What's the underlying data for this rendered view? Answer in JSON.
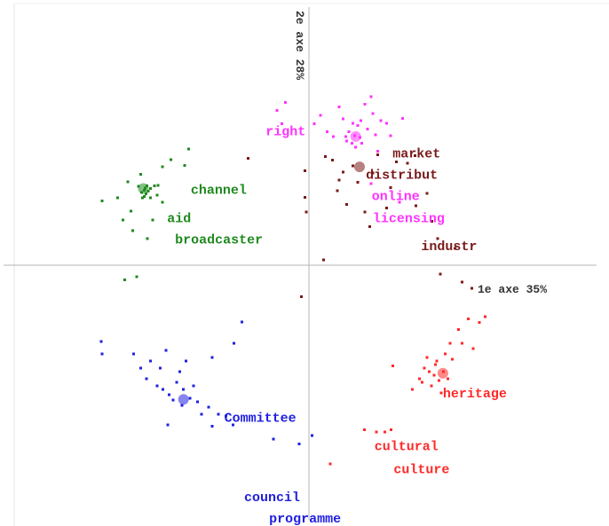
{
  "chart_data": {
    "type": "scatter",
    "title": "",
    "xlabel": "1e axe 35%",
    "ylabel": "2e axe 28%",
    "xlim": [
      -1,
      1
    ],
    "ylim": [
      -1,
      1
    ],
    "grid": false,
    "colors": {
      "green": "#1f8a1f",
      "magenta": "#ff33ff",
      "maroon": "#7a1a1a",
      "red": "#ff2a2a",
      "blue": "#2020e0"
    },
    "clusters": [
      {
        "color": "green",
        "centroid": [
          -0.524,
          0.281
        ],
        "points": [
          [
            -0.655,
            0.236
          ],
          [
            -0.605,
            0.247
          ],
          [
            -0.589,
            0.165
          ],
          [
            -0.573,
            0.305
          ],
          [
            -0.563,
            0.198
          ],
          [
            -0.539,
            0.289
          ],
          [
            -0.533,
            0.332
          ],
          [
            -0.53,
            0.267
          ],
          [
            -0.527,
            0.246
          ],
          [
            -0.521,
            0.275
          ],
          [
            -0.521,
            0.251
          ],
          [
            -0.518,
            0.283
          ],
          [
            -0.515,
            0.262
          ],
          [
            -0.512,
            0.29
          ],
          [
            -0.508,
            0.271
          ],
          [
            -0.502,
            0.246
          ],
          [
            -0.502,
            0.281
          ],
          [
            -0.489,
            0.291
          ],
          [
            -0.48,
            0.257
          ],
          [
            -0.477,
            0.292
          ],
          [
            -0.464,
            0.231
          ],
          [
            -0.464,
            0.361
          ],
          [
            -0.437,
            0.386
          ],
          [
            -0.393,
            0.366
          ],
          [
            -0.38,
            0.426
          ],
          [
            -0.558,
            0.127
          ],
          [
            -0.511,
            0.098
          ],
          [
            -0.495,
            0.166
          ],
          [
            -0.583,
            -0.053
          ],
          [
            -0.545,
            -0.042
          ]
        ]
      },
      {
        "color": "magenta",
        "centroid": [
          0.148,
          0.471
        ],
        "points": [
          [
            -0.101,
            0.567
          ],
          [
            -0.086,
            0.518
          ],
          [
            -0.074,
            0.596
          ],
          [
            0.017,
            0.518
          ],
          [
            0.036,
            0.549
          ],
          [
            0.058,
            0.488
          ],
          [
            0.077,
            0.47
          ],
          [
            0.096,
            0.58
          ],
          [
            0.108,
            0.535
          ],
          [
            0.117,
            0.47
          ],
          [
            0.12,
            0.454
          ],
          [
            0.126,
            0.488
          ],
          [
            0.136,
            0.447
          ],
          [
            0.139,
            0.52
          ],
          [
            0.145,
            0.474
          ],
          [
            0.148,
            0.432
          ],
          [
            0.155,
            0.512
          ],
          [
            0.161,
            0.467
          ],
          [
            0.164,
            0.529
          ],
          [
            0.167,
            0.447
          ],
          [
            0.177,
            0.59
          ],
          [
            0.186,
            0.499
          ],
          [
            0.196,
            0.617
          ],
          [
            0.202,
            0.555
          ],
          [
            0.211,
            0.477
          ],
          [
            0.218,
            0.417
          ],
          [
            0.227,
            0.53
          ],
          [
            0.246,
            0.52
          ],
          [
            0.258,
            0.474
          ],
          [
            0.296,
            0.537
          ],
          [
            0.196,
            0.298
          ],
          [
            0.287,
            0.23
          ]
        ]
      },
      {
        "color": "maroon",
        "centroid": [
          0.16,
          0.36
        ],
        "points": [
          [
            -0.193,
            0.391
          ],
          [
            -0.012,
            0.346
          ],
          [
            -0.012,
            0.249
          ],
          [
            -0.009,
            0.195
          ],
          [
            0.052,
            0.397
          ],
          [
            0.074,
            0.384
          ],
          [
            0.09,
            0.273
          ],
          [
            0.096,
            0.311
          ],
          [
            0.108,
            0.341
          ],
          [
            0.12,
            0.222
          ],
          [
            0.139,
            0.364
          ],
          [
            0.155,
            0.303
          ],
          [
            0.177,
            0.195
          ],
          [
            0.193,
            0.141
          ],
          [
            0.202,
            0.337
          ],
          [
            0.218,
            0.404
          ],
          [
            0.246,
            0.21
          ],
          [
            0.258,
            0.284
          ],
          [
            0.277,
            0.379
          ],
          [
            0.312,
            0.374
          ],
          [
            0.336,
            0.401
          ],
          [
            0.339,
            0.217
          ],
          [
            0.374,
            0.263
          ],
          [
            0.389,
            0.161
          ],
          [
            0.407,
            0.097
          ],
          [
            0.416,
            -0.032
          ],
          [
            0.462,
            0.061
          ],
          [
            0.484,
            -0.062
          ],
          [
            0.515,
            -0.085
          ],
          [
            0.047,
            0.019
          ],
          [
            -0.024,
            -0.116
          ]
        ]
      },
      {
        "color": "red",
        "centroid": [
          0.424,
          -0.395
        ],
        "points": [
          [
            0.265,
            -0.368
          ],
          [
            0.327,
            -0.455
          ],
          [
            0.35,
            -0.416
          ],
          [
            0.358,
            -0.429
          ],
          [
            0.365,
            -0.377
          ],
          [
            0.373,
            -0.338
          ],
          [
            0.38,
            -0.39
          ],
          [
            0.388,
            -0.442
          ],
          [
            0.396,
            -0.403
          ],
          [
            0.4,
            -0.364
          ],
          [
            0.404,
            -0.351
          ],
          [
            0.411,
            -0.422
          ],
          [
            0.419,
            -0.468
          ],
          [
            0.426,
            -0.39
          ],
          [
            0.431,
            -0.325
          ],
          [
            0.439,
            -0.416
          ],
          [
            0.446,
            -0.286
          ],
          [
            0.454,
            -0.344
          ],
          [
            0.473,
            -0.235
          ],
          [
            0.484,
            -0.286
          ],
          [
            0.504,
            -0.196
          ],
          [
            0.519,
            -0.306
          ],
          [
            0.539,
            -0.209
          ],
          [
            0.557,
            -0.189
          ],
          [
            0.175,
            -0.603
          ],
          [
            0.213,
            -0.61
          ],
          [
            0.24,
            -0.61
          ],
          [
            0.26,
            -0.603
          ],
          [
            0.067,
            -0.727
          ]
        ]
      },
      {
        "color": "blue",
        "centroid": [
          -0.397,
          -0.491
        ],
        "points": [
          [
            -0.658,
            -0.28
          ],
          [
            -0.655,
            -0.325
          ],
          [
            -0.555,
            -0.325
          ],
          [
            -0.533,
            -0.377
          ],
          [
            -0.514,
            -0.416
          ],
          [
            -0.502,
            -0.351
          ],
          [
            -0.481,
            -0.442
          ],
          [
            -0.471,
            -0.377
          ],
          [
            -0.462,
            -0.455
          ],
          [
            -0.452,
            -0.312
          ],
          [
            -0.443,
            -0.474
          ],
          [
            -0.43,
            -0.493
          ],
          [
            -0.418,
            -0.429
          ],
          [
            -0.409,
            -0.39
          ],
          [
            -0.402,
            -0.513
          ],
          [
            -0.397,
            -0.455
          ],
          [
            -0.389,
            -0.351
          ],
          [
            -0.377,
            -0.487
          ],
          [
            -0.365,
            -0.442
          ],
          [
            -0.352,
            -0.5
          ],
          [
            -0.34,
            -0.545
          ],
          [
            -0.318,
            -0.519
          ],
          [
            -0.306,
            -0.338
          ],
          [
            -0.287,
            -0.545
          ],
          [
            -0.262,
            -0.552
          ],
          [
            -0.24,
            -0.584
          ],
          [
            -0.306,
            -0.59
          ],
          [
            -0.447,
            -0.584
          ],
          [
            -0.237,
            -0.286
          ],
          [
            -0.212,
            -0.208
          ],
          [
            -0.112,
            -0.636
          ],
          [
            -0.031,
            -0.655
          ],
          [
            0.01,
            -0.623
          ]
        ]
      }
    ],
    "words": [
      {
        "text": "right",
        "color": "magenta",
        "x": -0.137,
        "y": 0.475
      },
      {
        "text": "market",
        "color": "maroon",
        "x": 0.265,
        "y": 0.394
      },
      {
        "text": "distribut",
        "color": "maroon",
        "x": 0.18,
        "y": 0.316
      },
      {
        "text": "online",
        "color": "magenta",
        "x": 0.199,
        "y": 0.238
      },
      {
        "text": "licensing",
        "color": "magenta",
        "x": 0.202,
        "y": 0.158
      },
      {
        "text": "industr",
        "color": "maroon",
        "x": 0.355,
        "y": 0.055
      },
      {
        "text": "channel",
        "color": "green",
        "x": -0.374,
        "y": 0.262
      },
      {
        "text": "aid",
        "color": "green",
        "x": -0.449,
        "y": 0.158
      },
      {
        "text": "broadcaster",
        "color": "green",
        "x": -0.424,
        "y": 0.08
      },
      {
        "text": "heritage",
        "color": "red",
        "x": 0.424,
        "y": -0.483
      },
      {
        "text": "cultural",
        "color": "red",
        "x": 0.207,
        "y": -0.677
      },
      {
        "text": "culture",
        "color": "red",
        "x": 0.268,
        "y": -0.761
      },
      {
        "text": "Committee",
        "color": "blue",
        "x": -0.268,
        "y": -0.573
      },
      {
        "text": "council",
        "color": "blue",
        "x": -0.205,
        "y": -0.863
      },
      {
        "text": "programme",
        "color": "blue",
        "x": -0.126,
        "y": -0.942
      }
    ]
  }
}
